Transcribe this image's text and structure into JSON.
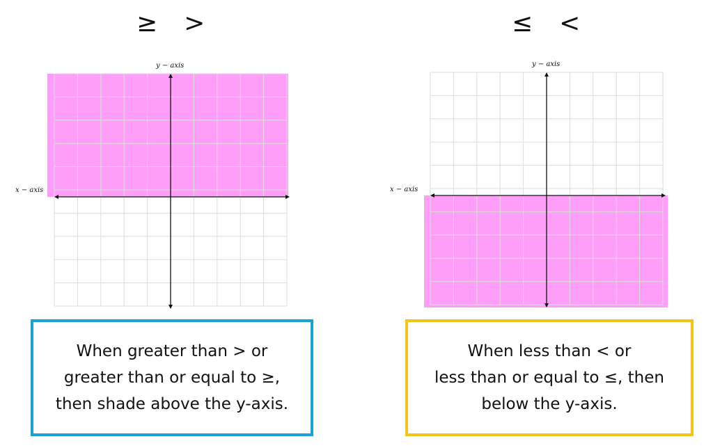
{
  "colors": {
    "shade": "#ff9ef8",
    "grid": "#dddddd",
    "axis": "#111111",
    "left_box_border": "#1aa1d6",
    "right_box_border": "#f5c419"
  },
  "left_panel": {
    "symbols": [
      "≥",
      ">"
    ],
    "y_axis_label": "y − axis",
    "x_axis_label": "x − axis",
    "shaded_region": "above",
    "note_lines": [
      "When greater than > or",
      "greater than or equal to ≥,",
      "then shade above the y-axis."
    ]
  },
  "right_panel": {
    "symbols": [
      "≤",
      "<"
    ],
    "y_axis_label": "y − axis",
    "x_axis_label": "x − axis",
    "shaded_region": "below",
    "note_lines": [
      "When less than < or",
      "less than or equal to ≤, then",
      "below the y-axis."
    ]
  }
}
